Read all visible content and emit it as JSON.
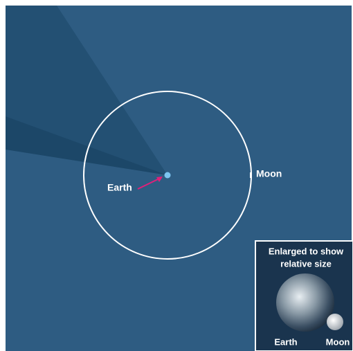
{
  "labels": {
    "earth": "Earth",
    "moon": "Moon"
  },
  "inset": {
    "title_lines": [
      "Enlarged to show",
      "relative size"
    ],
    "earth": "Earth",
    "moon": "Moon"
  }
}
